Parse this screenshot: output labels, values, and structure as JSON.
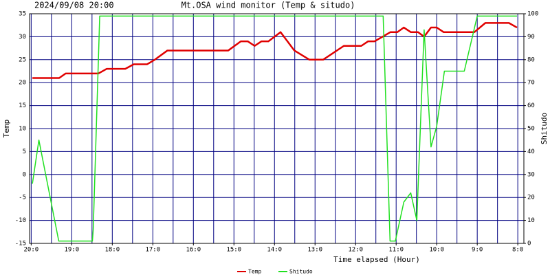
{
  "chart_data": {
    "type": "line",
    "title": "Mt.OSA wind monitor (Temp & situdo)",
    "timestamp": "2024/09/08 20:00",
    "xlabel": "Time elapsed (Hour)",
    "ylabel": "Temp",
    "y2label": "Shitudo",
    "xlim": [
      20.04,
      7.85
    ],
    "xticks": [
      {
        "value": 20,
        "label": "20:0"
      },
      {
        "value": 19,
        "label": "19:0"
      },
      {
        "value": 18,
        "label": "18:0"
      },
      {
        "value": 17,
        "label": "17:0"
      },
      {
        "value": 16,
        "label": "16:0"
      },
      {
        "value": 15,
        "label": "15:0"
      },
      {
        "value": 14,
        "label": "14:0"
      },
      {
        "value": 13,
        "label": "13:0"
      },
      {
        "value": 12,
        "label": "12:0"
      },
      {
        "value": 11,
        "label": "11:0"
      },
      {
        "value": 10,
        "label": "10:0"
      },
      {
        "value": 9,
        "label": "9:0"
      },
      {
        "value": 8,
        "label": "8:0"
      }
    ],
    "xminor": [
      19.5,
      18.5,
      17.5,
      16.5,
      15.5,
      14.5,
      13.5,
      12.5,
      11.5,
      10.5,
      9.5,
      8.5
    ],
    "ylim": [
      -15,
      35
    ],
    "yticks": [
      -15,
      -10,
      -5,
      0,
      5,
      10,
      15,
      20,
      25,
      30,
      35
    ],
    "y2lim": [
      0,
      100
    ],
    "y2ticks": [
      0,
      10,
      20,
      30,
      40,
      50,
      60,
      70,
      80,
      90,
      100
    ],
    "grid": true,
    "grid_color": "#000080",
    "series": [
      {
        "name": "Temp",
        "color": "#e00000",
        "x": [
          19.97,
          19.31,
          19.15,
          18.34,
          18.14,
          17.68,
          17.47,
          17.14,
          16.95,
          16.64,
          15.14,
          14.83,
          14.66,
          14.49,
          14.32,
          14.15,
          13.85,
          13.51,
          13.14,
          12.8,
          12.29,
          11.86,
          11.69,
          11.53,
          11.14,
          10.97,
          10.81,
          10.64,
          10.46,
          10.31,
          10.14,
          10.0,
          9.83,
          9.07,
          8.8,
          8.22,
          8.02
        ],
        "values": [
          21,
          21,
          22,
          22,
          23,
          23,
          24,
          24,
          25,
          27,
          27,
          29,
          29,
          28,
          29,
          29,
          31,
          27,
          25,
          25,
          28,
          28,
          29,
          29,
          31,
          31,
          32,
          31,
          31,
          30,
          32,
          32,
          31,
          31,
          33,
          33,
          32
        ]
      },
      {
        "name": "Shitudo",
        "color": "#20e020",
        "axis": "y2",
        "x": [
          19.97,
          19.81,
          19.32,
          18.49,
          18.47,
          18.31,
          11.32,
          11.15,
          11.02,
          10.81,
          10.64,
          10.49,
          10.31,
          10.14,
          10.0,
          9.81,
          9.32,
          9.0,
          8.02
        ],
        "values": [
          26,
          45,
          1,
          1,
          6,
          99,
          99,
          1,
          1,
          18,
          22,
          10,
          93,
          42,
          51,
          75,
          75,
          99,
          99
        ]
      }
    ]
  }
}
